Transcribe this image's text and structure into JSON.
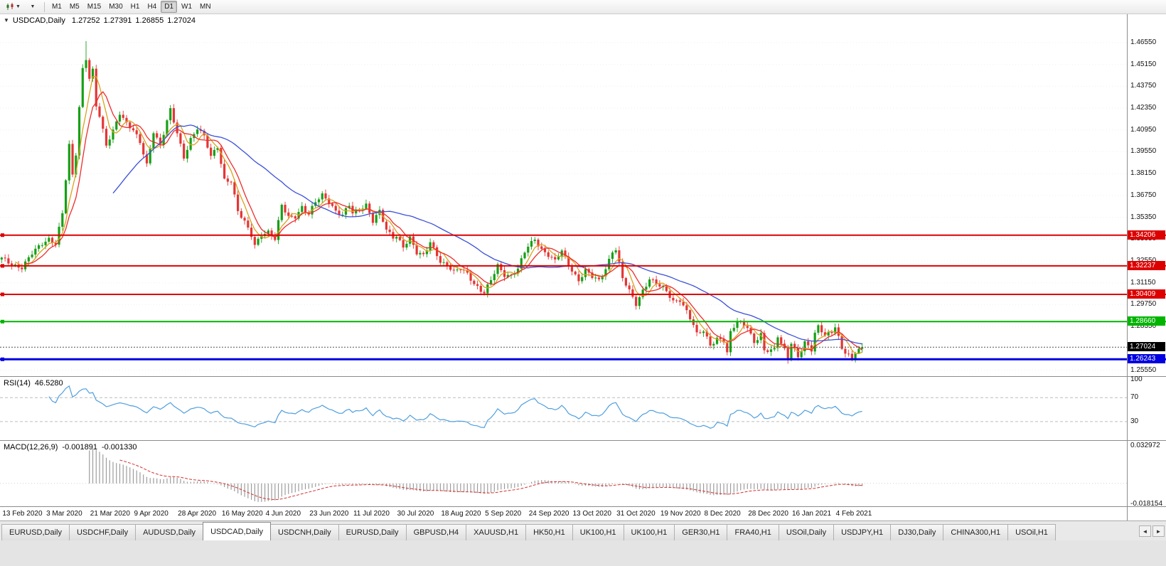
{
  "toolbar": {
    "timeframes": [
      "M1",
      "M5",
      "M15",
      "M30",
      "H1",
      "H4",
      "D1",
      "W1",
      "MN"
    ],
    "active_timeframe": "D1",
    "icons": [
      "candlestick-chart-dropdown",
      "period-dropdown"
    ]
  },
  "chart_data": {
    "type": "candlestick",
    "symbol": "USDCAD",
    "timeframe": "Daily",
    "title": "USDCAD,Daily",
    "header": {
      "symbol": "USDCAD,Daily",
      "open": "1.27252",
      "high": "1.27391",
      "low": "1.26855",
      "close": "1.27024"
    },
    "y_axis": {
      "labels": [
        "1.46550",
        "1.45150",
        "1.43750",
        "1.42350",
        "1.40950",
        "1.39550",
        "1.38150",
        "1.36750",
        "1.35350",
        "1.33950",
        "1.32550",
        "1.31150",
        "1.29750",
        "1.28350",
        "1.26950",
        "1.25550"
      ]
    },
    "x_labels": [
      "13 Feb 2020",
      "3 Mar 2020",
      "21 Mar 2020",
      "9 Apr 2020",
      "28 Apr 2020",
      "16 May 2020",
      "4 Jun 2020",
      "23 Jun 2020",
      "11 Jul 2020",
      "30 Jul 2020",
      "18 Aug 2020",
      "5 Sep 2020",
      "24 Sep 2020",
      "13 Oct 2020",
      "31 Oct 2020",
      "19 Nov 2020",
      "8 Dec 2020",
      "28 Dec 2020",
      "16 Jan 2021",
      "4 Feb 2021"
    ],
    "price_range_est": [
      1.2521,
      1.4837
    ],
    "colors": {
      "up": "#16a016",
      "down": "#e53535",
      "background": "#ffffff",
      "axis_text": "#111111",
      "grid": "#efefef"
    },
    "moving_averages": [
      {
        "period": 5,
        "color": "#d9a21b"
      },
      {
        "period": 8,
        "color": "#ee2c2c"
      },
      {
        "period": 34,
        "color": "#3c50d8"
      }
    ],
    "levels": [
      {
        "price": 1.34206,
        "label": "1.34206",
        "color": "#dd0000",
        "width": 2,
        "name": "resistance-1"
      },
      {
        "price": 1.32237,
        "label": "1.32237",
        "color": "#dd0000",
        "width": 2,
        "name": "resistance-2"
      },
      {
        "price": 1.30409,
        "label": "1.30409",
        "color": "#dd0000",
        "width": 2,
        "name": "resistance-3"
      },
      {
        "price": 1.2866,
        "label": "1.28660",
        "color": "#00b400",
        "width": 2,
        "name": "support-green"
      },
      {
        "price": 1.26243,
        "label": "1.26243",
        "color": "#0000e0",
        "width": 3,
        "name": "support-blue"
      }
    ],
    "current_price": {
      "value": 1.27024,
      "label": "1.27024",
      "badge_color": "#000000"
    },
    "indicators": {
      "rsi": {
        "name": "RSI(14)",
        "period": 14,
        "value": "46.5280",
        "levels": [
          100,
          70,
          30
        ],
        "line_color": "#4f9fdf"
      },
      "macd": {
        "name": "MACD(12,26,9)",
        "fast": 12,
        "slow": 26,
        "signal": 9,
        "value_main": "-0.001891",
        "value_signal": "-0.001330",
        "axis_max": "0.032972",
        "axis_min": "-0.018154",
        "axis_max_val": 0.032972,
        "axis_min_val": -0.018154,
        "hist_color": "#9c9c9c",
        "signal_color": "#d23030"
      }
    },
    "series": {
      "candle_count": 256,
      "jitter": 0.0018,
      "wick": 0.002,
      "spike_high": {
        "index": 25,
        "price": 1.4665
      },
      "close_waypoints": [
        [
          0,
          1.327
        ],
        [
          3,
          1.3235
        ],
        [
          6,
          1.3215
        ],
        [
          9,
          1.33
        ],
        [
          12,
          1.3365
        ],
        [
          14,
          1.34
        ],
        [
          16,
          1.337
        ],
        [
          18,
          1.356
        ],
        [
          20,
          1.399
        ],
        [
          21,
          1.38
        ],
        [
          22,
          1.394
        ],
        [
          23,
          1.424
        ],
        [
          24,
          1.449
        ],
        [
          25,
          1.456
        ],
        [
          26,
          1.443
        ],
        [
          27,
          1.448
        ],
        [
          28,
          1.425
        ],
        [
          29,
          1.418
        ],
        [
          31,
          1.399
        ],
        [
          33,
          1.409
        ],
        [
          35,
          1.421
        ],
        [
          37,
          1.414
        ],
        [
          39,
          1.409
        ],
        [
          41,
          1.401
        ],
        [
          43,
          1.387
        ],
        [
          45,
          1.409
        ],
        [
          47,
          1.4
        ],
        [
          49,
          1.415
        ],
        [
          50,
          1.422
        ],
        [
          52,
          1.407
        ],
        [
          54,
          1.392
        ],
        [
          56,
          1.404
        ],
        [
          58,
          1.411
        ],
        [
          60,
          1.405
        ],
        [
          62,
          1.392
        ],
        [
          64,
          1.399
        ],
        [
          66,
          1.378
        ],
        [
          68,
          1.377
        ],
        [
          70,
          1.357
        ],
        [
          72,
          1.35
        ],
        [
          74,
          1.342
        ],
        [
          75,
          1.336
        ],
        [
          77,
          1.343
        ],
        [
          79,
          1.344
        ],
        [
          81,
          1.339
        ],
        [
          83,
          1.361
        ],
        [
          85,
          1.354
        ],
        [
          87,
          1.3545
        ],
        [
          89,
          1.36
        ],
        [
          91,
          1.355
        ],
        [
          93,
          1.363
        ],
        [
          95,
          1.368
        ],
        [
          97,
          1.364
        ],
        [
          99,
          1.3575
        ],
        [
          101,
          1.3545
        ],
        [
          103,
          1.361
        ],
        [
          104,
          1.356
        ],
        [
          106,
          1.359
        ],
        [
          108,
          1.362
        ],
        [
          110,
          1.351
        ],
        [
          112,
          1.357
        ],
        [
          114,
          1.345
        ],
        [
          116,
          1.341
        ],
        [
          117,
          1.342
        ],
        [
          119,
          1.335
        ],
        [
          121,
          1.34
        ],
        [
          123,
          1.33
        ],
        [
          125,
          1.329
        ],
        [
          127,
          1.338
        ],
        [
          129,
          1.33
        ],
        [
          130,
          1.325
        ],
        [
          132,
          1.322
        ],
        [
          134,
          1.318
        ],
        [
          136,
          1.321
        ],
        [
          138,
          1.318
        ],
        [
          140,
          1.311
        ],
        [
          142,
          1.306
        ],
        [
          143,
          1.3045
        ],
        [
          145,
          1.313
        ],
        [
          147,
          1.323
        ],
        [
          149,
          1.317
        ],
        [
          151,
          1.316
        ],
        [
          153,
          1.32
        ],
        [
          155,
          1.331
        ],
        [
          156,
          1.335
        ],
        [
          158,
          1.34
        ],
        [
          160,
          1.333
        ],
        [
          162,
          1.329
        ],
        [
          164,
          1.325
        ],
        [
          166,
          1.332
        ],
        [
          168,
          1.323
        ],
        [
          169,
          1.32
        ],
        [
          171,
          1.313
        ],
        [
          173,
          1.319
        ],
        [
          175,
          1.315
        ],
        [
          177,
          1.313
        ],
        [
          179,
          1.321
        ],
        [
          181,
          1.332
        ],
        [
          182,
          1.333
        ],
        [
          184,
          1.314
        ],
        [
          186,
          1.306
        ],
        [
          188,
          1.298
        ],
        [
          190,
          1.307
        ],
        [
          192,
          1.314
        ],
        [
          195,
          1.309
        ],
        [
          197,
          1.306
        ],
        [
          199,
          1.3
        ],
        [
          201,
          1.301
        ],
        [
          203,
          1.293
        ],
        [
          205,
          1.284
        ],
        [
          206,
          1.278
        ],
        [
          208,
          1.281
        ],
        [
          210,
          1.272
        ],
        [
          212,
          1.276
        ],
        [
          214,
          1.274
        ],
        [
          215,
          1.266
        ],
        [
          216,
          1.279
        ],
        [
          218,
          1.287
        ],
        [
          221,
          1.284
        ],
        [
          223,
          1.273
        ],
        [
          225,
          1.278
        ],
        [
          226,
          1.267
        ],
        [
          229,
          1.269
        ],
        [
          230,
          1.278
        ],
        [
          232,
          1.269
        ],
        [
          233,
          1.263
        ],
        [
          234,
          1.273
        ],
        [
          236,
          1.263
        ],
        [
          238,
          1.273
        ],
        [
          240,
          1.269
        ],
        [
          241,
          1.28
        ],
        [
          242,
          1.284
        ],
        [
          244,
          1.278
        ],
        [
          246,
          1.279
        ],
        [
          247,
          1.283
        ],
        [
          249,
          1.269
        ],
        [
          251,
          1.266
        ],
        [
          252,
          1.263
        ],
        [
          253,
          1.268
        ],
        [
          255,
          1.27024
        ]
      ]
    }
  },
  "tabs": {
    "items": [
      "EURUSD,Daily",
      "USDCHF,Daily",
      "AUDUSD,Daily",
      "USDCAD,Daily",
      "USDCNH,Daily",
      "EURUSD,Daily",
      "GBPUSD,H4",
      "XAUUSD,H1",
      "HK50,H1",
      "UK100,H1",
      "UK100,H1",
      "GER30,H1",
      "FRA40,H1",
      "USOil,Daily",
      "USDJPY,H1",
      "DJ30,Daily",
      "CHINA300,H1",
      "USOil,H1"
    ],
    "active_index": 3,
    "scroll_left": "◄",
    "scroll_right": "►"
  }
}
